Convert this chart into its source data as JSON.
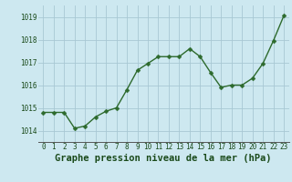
{
  "x": [
    0,
    1,
    2,
    3,
    4,
    5,
    6,
    7,
    8,
    9,
    10,
    11,
    12,
    13,
    14,
    15,
    16,
    17,
    18,
    19,
    20,
    21,
    22,
    23
  ],
  "y": [
    1014.8,
    1014.8,
    1014.8,
    1014.1,
    1014.2,
    1014.6,
    1014.85,
    1015.0,
    1015.8,
    1016.65,
    1016.95,
    1017.25,
    1017.25,
    1017.25,
    1017.6,
    1017.25,
    1016.55,
    1015.9,
    1016.0,
    1016.0,
    1016.3,
    1016.95,
    1017.95,
    1019.05
  ],
  "ylim": [
    1013.5,
    1019.5
  ],
  "xlim": [
    -0.5,
    23.5
  ],
  "yticks": [
    1014,
    1015,
    1016,
    1017,
    1018,
    1019
  ],
  "xticks": [
    0,
    1,
    2,
    3,
    4,
    5,
    6,
    7,
    8,
    9,
    10,
    11,
    12,
    13,
    14,
    15,
    16,
    17,
    18,
    19,
    20,
    21,
    22,
    23
  ],
  "line_color": "#2d6a2d",
  "marker_color": "#2d6a2d",
  "bg_color": "#cde8f0",
  "grid_color": "#a8c8d4",
  "xlabel": "Graphe pression niveau de la mer (hPa)",
  "xlabel_color": "#1a4a1a",
  "tick_color": "#1a4a1a",
  "tick_fontsize": 5.5,
  "xlabel_fontsize": 7.5,
  "marker_size": 2.5,
  "line_width": 1.0
}
